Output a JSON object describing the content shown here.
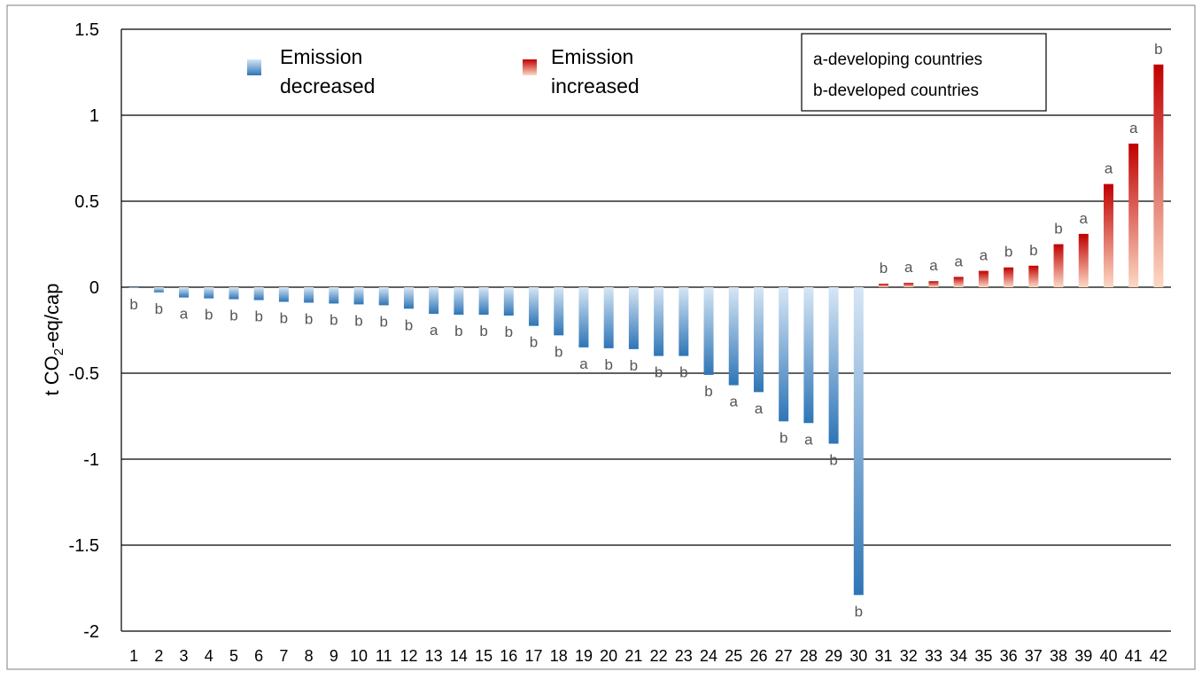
{
  "chart_data": {
    "type": "bar",
    "title": "",
    "xlabel": "",
    "ylabel_main": "t CO",
    "ylabel_sub": "2",
    "ylabel_tail": "-eq/cap",
    "ylim": [
      -2,
      1.5
    ],
    "yticks": [
      1.5,
      1,
      0.5,
      0,
      -0.5,
      -1,
      -1.5,
      -2
    ],
    "ytick_labels": [
      "1.5",
      "1",
      "0.5",
      "0",
      "-0.5",
      "-1",
      "-1.5",
      "-2"
    ],
    "grid": true,
    "categories": [
      "1",
      "2",
      "3",
      "4",
      "5",
      "6",
      "7",
      "8",
      "9",
      "10",
      "11",
      "12",
      "13",
      "14",
      "15",
      "16",
      "17",
      "18",
      "19",
      "20",
      "21",
      "22",
      "23",
      "24",
      "25",
      "26",
      "27",
      "28",
      "29",
      "30",
      "31",
      "32",
      "33",
      "34",
      "35",
      "36",
      "37",
      "38",
      "39",
      "40",
      "41",
      "42"
    ],
    "values": [
      -0.005,
      -0.03,
      -0.06,
      -0.065,
      -0.07,
      -0.075,
      -0.085,
      -0.09,
      -0.095,
      -0.1,
      -0.105,
      -0.125,
      -0.155,
      -0.16,
      -0.16,
      -0.165,
      -0.225,
      -0.28,
      -0.35,
      -0.355,
      -0.36,
      -0.4,
      -0.4,
      -0.51,
      -0.57,
      -0.61,
      -0.78,
      -0.79,
      -0.91,
      -1.79,
      0.02,
      0.025,
      0.035,
      0.06,
      0.095,
      0.115,
      0.125,
      0.25,
      0.31,
      0.6,
      0.835,
      1.295
    ],
    "annotations": [
      "b",
      "b",
      "a",
      "b",
      "b",
      "b",
      "b",
      "b",
      "b",
      "b",
      "b",
      "b",
      "a",
      "b",
      "b",
      "b",
      "b",
      "b",
      "a",
      "b",
      "b",
      "b",
      "b",
      "b",
      "a",
      "a",
      "b",
      "a",
      "b",
      "b",
      "b",
      "a",
      "a",
      "a",
      "a",
      "b",
      "b",
      "b",
      "a",
      "a",
      "a",
      "b"
    ],
    "legend": {
      "placement": "top",
      "decreased_line1": "Emission",
      "decreased_line2": "decreased",
      "increased_line1": "Emission",
      "increased_line2": "increased",
      "group_a": "a-developing countries",
      "group_b": "b-developed countries"
    },
    "colors": {
      "decrease_dark": "#2e75b6",
      "decrease_light": "#d6e6f5",
      "increase_dark": "#c00000",
      "increase_light": "#fcd9c4",
      "grid": "#000000",
      "frame": "#7f7f7f"
    }
  }
}
